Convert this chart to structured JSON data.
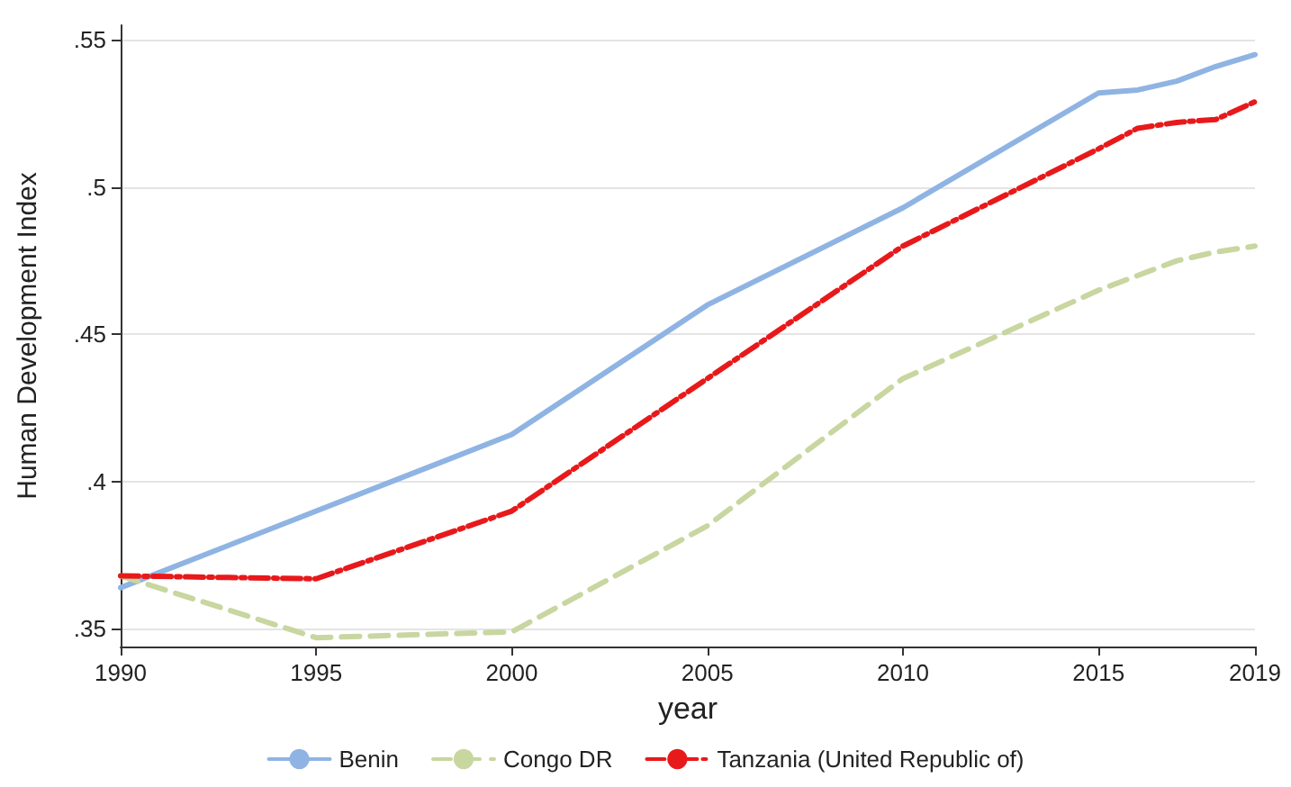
{
  "chart_data": {
    "type": "line",
    "xlabel": "year",
    "ylabel": "Human Development Index",
    "x": [
      1990,
      1995,
      2000,
      2005,
      2010,
      2015,
      2016,
      2017,
      2018,
      2019
    ],
    "series": [
      {
        "name": "Benin",
        "color": "#8fb4e3",
        "line_style": "solid",
        "values": [
          0.364,
          0.39,
          0.416,
          0.46,
          0.493,
          0.532,
          0.533,
          0.536,
          0.541,
          0.545
        ]
      },
      {
        "name": "Congo DR",
        "color": "#c8d6a0",
        "line_style": "dashed",
        "values": [
          0.368,
          0.347,
          0.349,
          0.385,
          0.435,
          0.465,
          0.47,
          0.475,
          0.478,
          0.48
        ]
      },
      {
        "name": "Tanzania (United Republic of)",
        "color": "#e8191b",
        "line_style": "dashdot",
        "values": [
          0.368,
          0.367,
          0.39,
          0.435,
          0.48,
          0.513,
          0.52,
          0.522,
          0.523,
          0.529
        ]
      }
    ],
    "xlim": [
      1990,
      2019
    ],
    "xticks": [
      1990,
      1995,
      2000,
      2005,
      2010,
      2015,
      2019
    ],
    "ylim": [
      0.344,
      0.555
    ],
    "yticks": [
      {
        "value": 0.35,
        "label": ".35"
      },
      {
        "value": 0.4,
        "label": ".4"
      },
      {
        "value": 0.45,
        "label": ".45"
      },
      {
        "value": 0.5,
        "label": ".5"
      },
      {
        "value": 0.55,
        "label": ".55"
      }
    ],
    "grid": "y",
    "legend": "bottom",
    "marker": "none"
  }
}
